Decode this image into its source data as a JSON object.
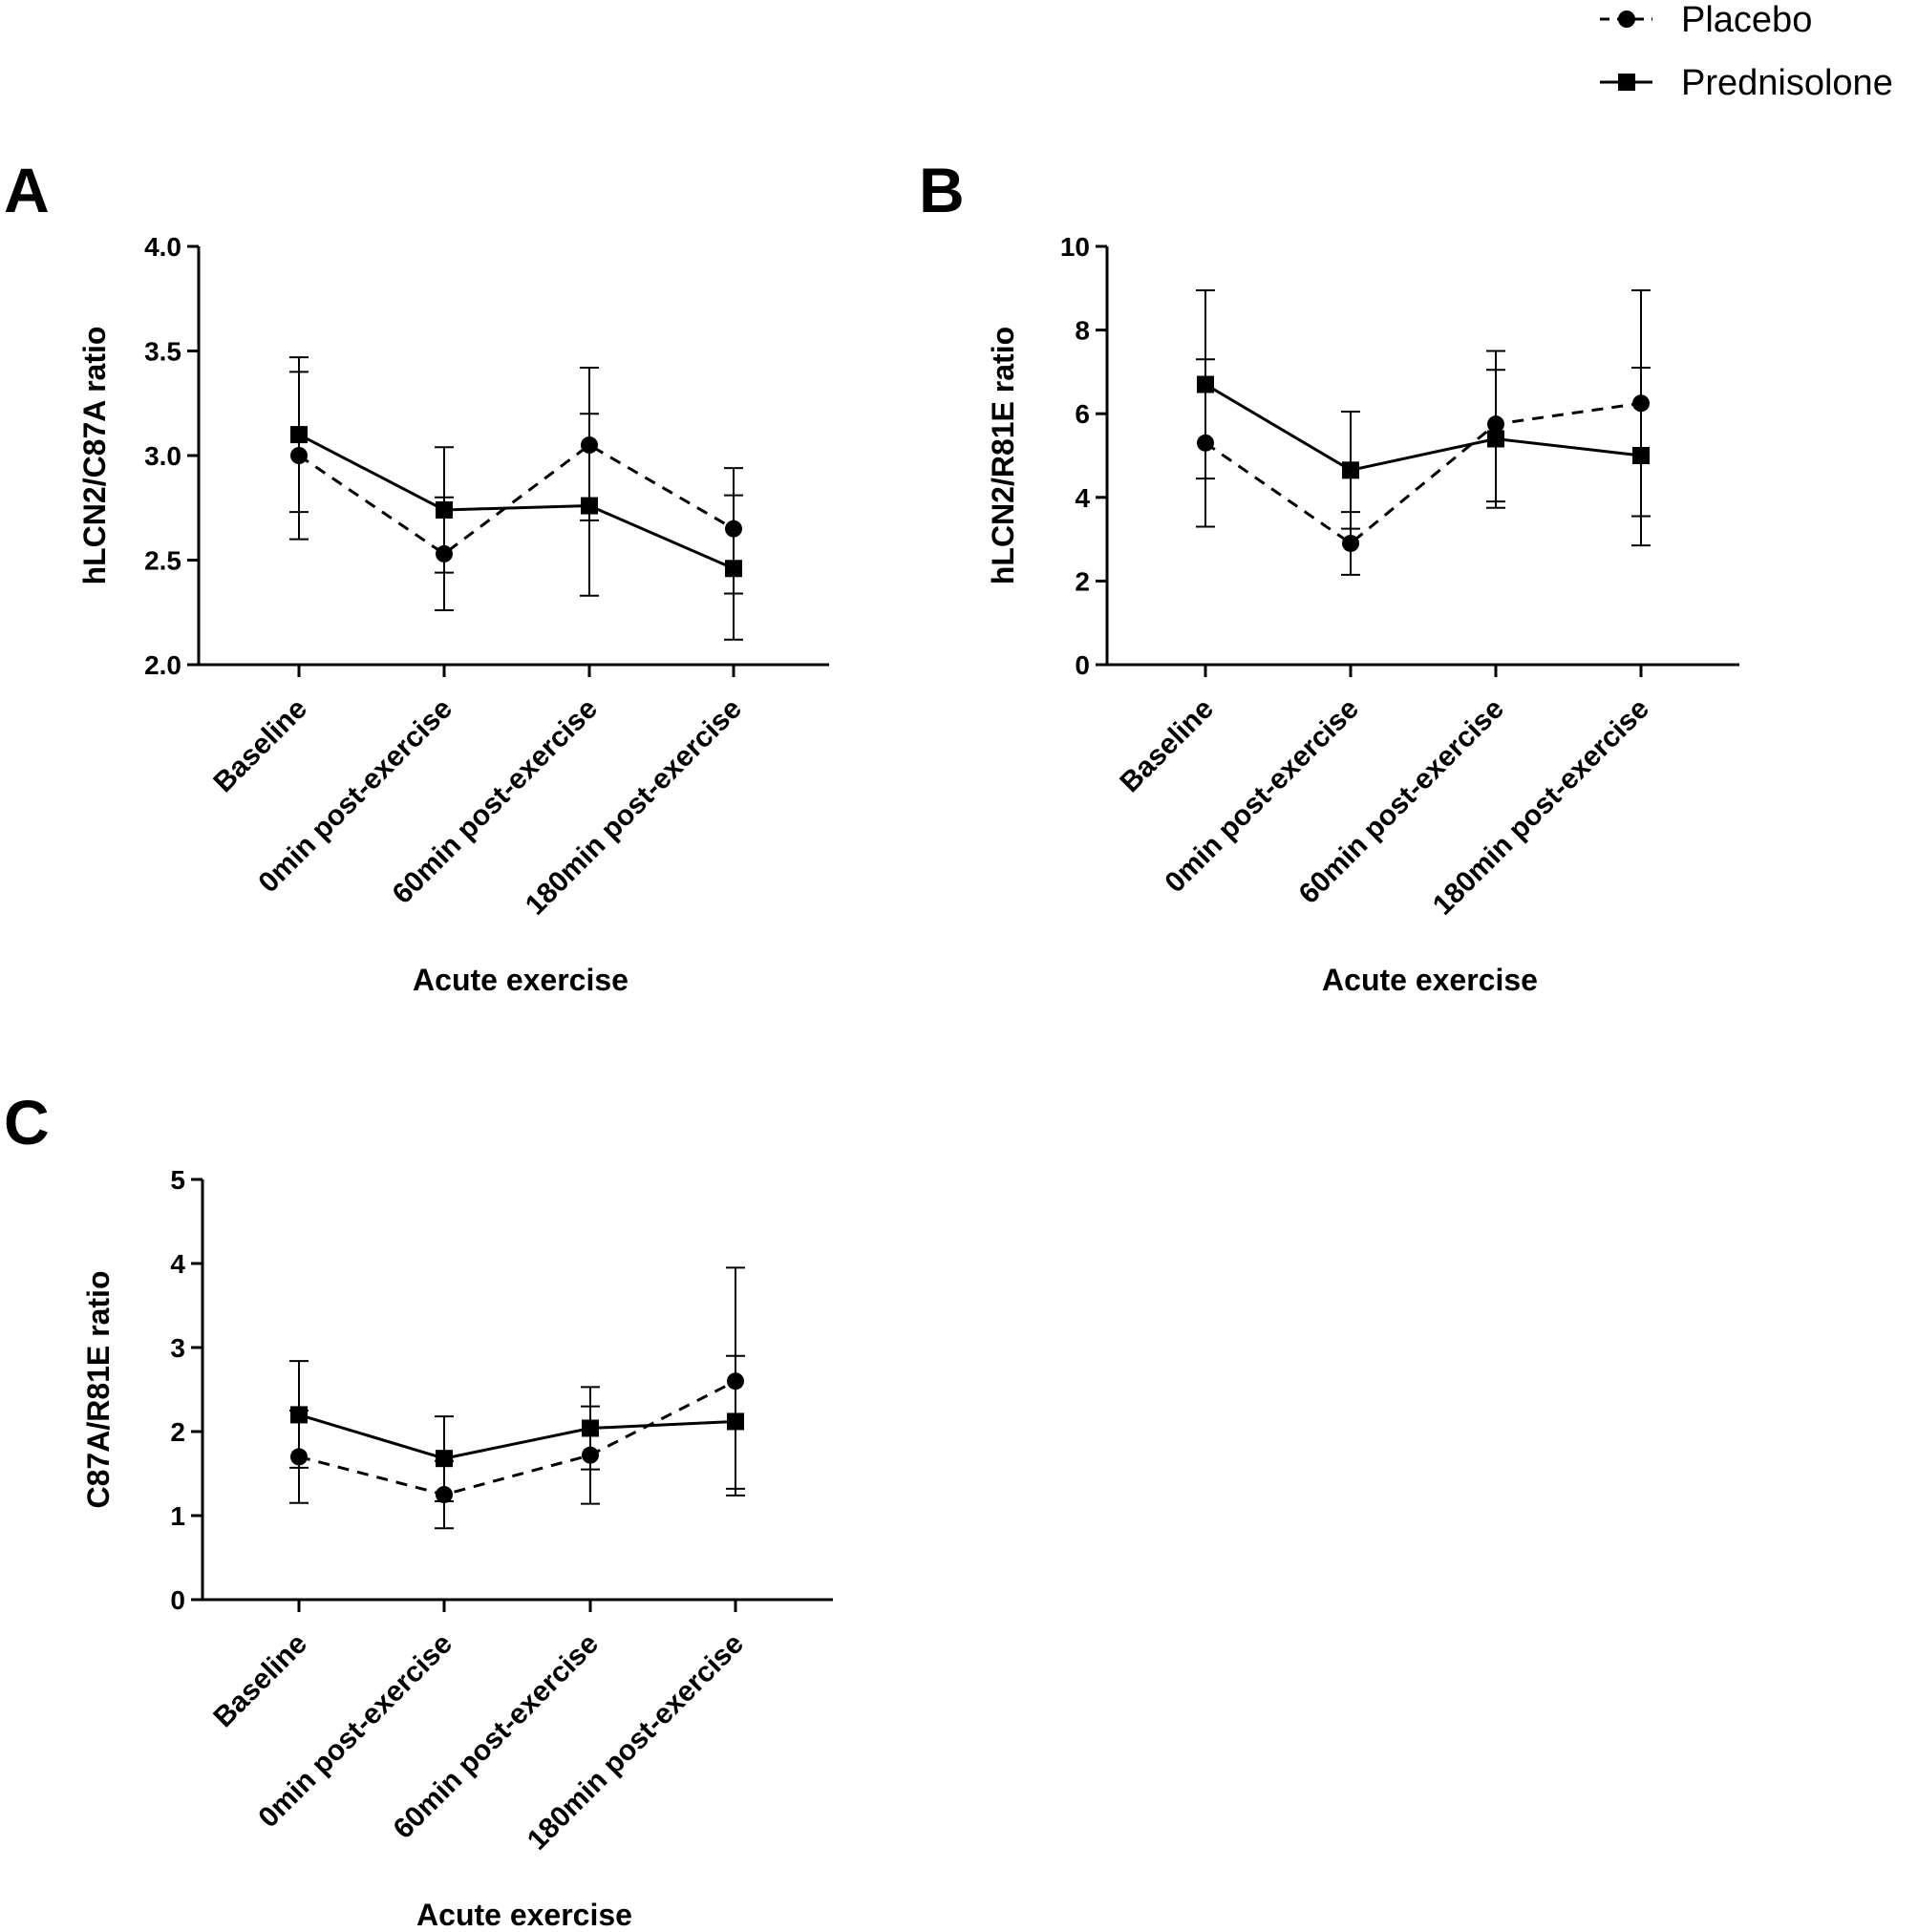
{
  "legend": {
    "items": [
      {
        "label": "Placebo",
        "marker": "circle",
        "dash": true
      },
      {
        "label": "Prednisolone",
        "marker": "square",
        "dash": false
      }
    ]
  },
  "chart_data": [
    {
      "panel": "A",
      "type": "line",
      "ylabel": "hLCN2/C87A ratio",
      "xlabel": "Acute exercise",
      "categories": [
        "Baseline",
        "0min post-exercise",
        "60min post-exercise",
        "180min post-exercise"
      ],
      "ylim": [
        2.0,
        4.0
      ],
      "yticks": [
        2.0,
        2.5,
        3.0,
        3.5,
        4.0
      ],
      "tick_format": "0.0",
      "series": [
        {
          "name": "Placebo",
          "marker": "circle",
          "values": [
            3.0,
            2.53,
            3.05,
            2.65
          ],
          "err_low": [
            2.6,
            2.26,
            2.69,
            2.34
          ],
          "err_high": [
            3.4,
            2.8,
            3.42,
            2.94
          ]
        },
        {
          "name": "Prednisolone",
          "marker": "square",
          "values": [
            3.1,
            2.74,
            2.76,
            2.46
          ],
          "err_low": [
            2.73,
            2.44,
            2.33,
            2.12
          ],
          "err_high": [
            3.47,
            3.04,
            3.2,
            2.81
          ]
        }
      ]
    },
    {
      "panel": "B",
      "type": "line",
      "ylabel": "hLCN2/R81E ratio",
      "xlabel": "Acute exercise",
      "categories": [
        "Baseline",
        "0min post-exercise",
        "60min post-exercise",
        "180min post-exercise"
      ],
      "ylim": [
        0,
        10
      ],
      "yticks": [
        0,
        2,
        4,
        6,
        8,
        10
      ],
      "tick_format": "0",
      "series": [
        {
          "name": "Placebo",
          "marker": "circle",
          "values": [
            5.3,
            2.9,
            5.75,
            6.25
          ],
          "err_low": [
            3.3,
            2.15,
            3.9,
            3.55
          ],
          "err_high": [
            7.3,
            3.65,
            7.5,
            8.95
          ]
        },
        {
          "name": "Prednisolone",
          "marker": "square",
          "values": [
            6.7,
            4.65,
            5.4,
            5.0
          ],
          "err_low": [
            4.45,
            3.25,
            3.75,
            2.85
          ],
          "err_high": [
            8.95,
            6.05,
            7.05,
            7.1
          ]
        }
      ]
    },
    {
      "panel": "C",
      "type": "line",
      "ylabel": "C87A/R81E ratio",
      "xlabel": "Acute exercise",
      "categories": [
        "Baseline",
        "0min post-exercise",
        "60min post-exercise",
        "180min post-exercise"
      ],
      "ylim": [
        0,
        5
      ],
      "yticks": [
        0,
        1,
        2,
        3,
        4,
        5
      ],
      "tick_format": "0",
      "series": [
        {
          "name": "Placebo",
          "marker": "circle",
          "values": [
            1.7,
            1.25,
            1.72,
            2.6
          ],
          "err_low": [
            1.15,
            0.85,
            1.14,
            1.24
          ],
          "err_high": [
            2.25,
            1.65,
            2.3,
            3.95
          ]
        },
        {
          "name": "Prednisolone",
          "marker": "square",
          "values": [
            2.2,
            1.68,
            2.04,
            2.12
          ],
          "err_low": [
            1.57,
            1.17,
            1.55,
            1.32
          ],
          "err_high": [
            2.84,
            2.18,
            2.53,
            2.9
          ]
        }
      ]
    }
  ]
}
